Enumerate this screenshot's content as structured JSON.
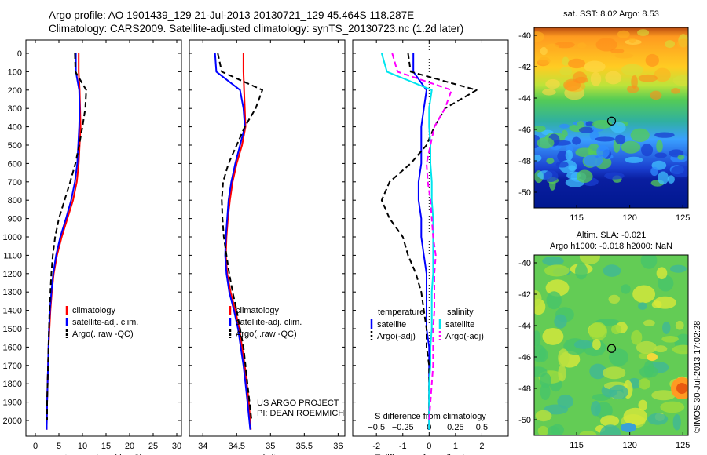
{
  "header": {
    "title_line1": "Argo profile: AO 1901439_129 21-Jul-2013 20130721_129 45.464S 118.287E",
    "title_line2": "Climatology: CARS2009. Satellite-adjusted climatology: synTS_20130723.nc (1.2d later)"
  },
  "colors": {
    "climatology": "#ff0000",
    "satellite": "#0000ff",
    "argo": "#000000",
    "satellite_salinity": "#00e5ee",
    "argo_salinity": "#ff00ff"
  },
  "chart_data": [
    {
      "name": "temperature",
      "type": "line",
      "xlabel": "temperature (deg C)",
      "xlim": [
        -2,
        31
      ],
      "ylim": [
        2080,
        0
      ],
      "xticks": [
        0,
        5,
        10,
        15,
        20,
        25,
        30
      ],
      "yticks": [
        0,
        100,
        200,
        300,
        400,
        500,
        600,
        700,
        800,
        900,
        1000,
        1100,
        1200,
        1300,
        1400,
        1500,
        1600,
        1700,
        1800,
        1900,
        2000
      ],
      "legend": [
        "climatology",
        "satellite-adj. clim.",
        "Argo(..raw -QC)"
      ],
      "series": [
        {
          "key": "climatology",
          "style": "solid",
          "x": [
            9.2,
            9.2,
            9.4,
            9.5,
            9.6,
            9.4,
            9.2,
            8.8,
            8.0,
            6.8,
            5.6,
            4.6,
            3.9,
            3.5,
            3.2,
            3.0,
            2.8,
            2.7,
            2.6,
            2.5,
            2.4
          ],
          "y": [
            0,
            100,
            200,
            300,
            400,
            500,
            600,
            700,
            800,
            900,
            1000,
            1100,
            1200,
            1300,
            1400,
            1500,
            1600,
            1700,
            1800,
            1900,
            2050
          ]
        },
        {
          "key": "satellite",
          "style": "solid",
          "x": [
            8.6,
            8.6,
            9.3,
            9.4,
            9.3,
            9.1,
            8.9,
            8.4,
            7.6,
            6.5,
            5.3,
            4.4,
            3.8,
            3.4,
            3.1,
            2.9,
            2.8,
            2.7,
            2.6,
            2.5,
            2.4
          ],
          "y": [
            0,
            100,
            200,
            300,
            400,
            500,
            600,
            700,
            800,
            900,
            1000,
            1100,
            1200,
            1300,
            1400,
            1500,
            1600,
            1700,
            1800,
            1900,
            2050
          ]
        },
        {
          "key": "argo",
          "style": "dashed",
          "x": [
            8.4,
            8.5,
            10.8,
            10.6,
            10.0,
            9.3,
            8.5,
            7.4,
            6.2,
            5.0,
            4.2,
            3.7,
            3.4,
            3.2,
            3.0,
            2.9,
            2.8,
            2.7,
            2.6,
            2.5,
            2.5
          ],
          "y": [
            0,
            100,
            200,
            300,
            400,
            500,
            600,
            700,
            800,
            900,
            1000,
            1100,
            1200,
            1300,
            1400,
            1500,
            1600,
            1700,
            1800,
            1900,
            2000
          ]
        }
      ]
    },
    {
      "name": "salinity",
      "type": "line",
      "xlabel": "salinity",
      "xlim": [
        33.8,
        36.1
      ],
      "ylim": [
        2080,
        0
      ],
      "xticks": [
        34,
        34.5,
        35,
        35.5,
        36
      ],
      "xtick_labels": [
        "34",
        "34.5",
        "35",
        "35.5",
        "36"
      ],
      "legend": [
        "climatology",
        "satellite-adj. clim.",
        "Argo(..raw -QC)"
      ],
      "credit": [
        "US ARGO PROJECT",
        "PI: DEAN ROEMMICH"
      ],
      "series": [
        {
          "key": "climatology",
          "style": "solid",
          "x": [
            34.6,
            34.6,
            34.61,
            34.62,
            34.63,
            34.58,
            34.5,
            34.44,
            34.4,
            34.37,
            34.35,
            34.34,
            34.36,
            34.41,
            34.48,
            34.54,
            34.58,
            34.62,
            34.65,
            34.68,
            34.71
          ],
          "y": [
            0,
            100,
            200,
            300,
            400,
            500,
            600,
            700,
            800,
            900,
            1000,
            1100,
            1200,
            1300,
            1400,
            1500,
            1600,
            1700,
            1800,
            1900,
            2050
          ]
        },
        {
          "key": "satellite",
          "style": "solid",
          "x": [
            34.18,
            34.2,
            34.55,
            34.6,
            34.62,
            34.55,
            34.48,
            34.42,
            34.38,
            34.36,
            34.34,
            34.33,
            34.35,
            34.39,
            34.46,
            34.52,
            34.56,
            34.6,
            34.63,
            34.66,
            34.7
          ],
          "y": [
            0,
            100,
            200,
            300,
            400,
            500,
            600,
            700,
            800,
            900,
            1000,
            1100,
            1200,
            1300,
            1400,
            1500,
            1600,
            1700,
            1800,
            1900,
            2050
          ]
        },
        {
          "key": "argo",
          "style": "dashed",
          "x": [
            34.22,
            34.28,
            34.88,
            34.78,
            34.62,
            34.5,
            34.38,
            34.3,
            34.28,
            34.29,
            34.31,
            34.35,
            34.39,
            34.44,
            34.5,
            34.55,
            34.6,
            34.63,
            34.66,
            34.69,
            34.72
          ],
          "y": [
            0,
            100,
            200,
            300,
            400,
            500,
            600,
            700,
            800,
            900,
            1000,
            1100,
            1200,
            1300,
            1400,
            1500,
            1600,
            1700,
            1800,
            1900,
            2000
          ]
        }
      ]
    },
    {
      "name": "difference",
      "type": "line",
      "xlabel": "T difference from climatology",
      "top_label": "S difference from climatology",
      "xlim": [
        -2.9,
        3.0
      ],
      "ylim": [
        2080,
        0
      ],
      "xticks": [
        -2,
        -1,
        0,
        1,
        2
      ],
      "top_xticks": [
        -0.5,
        -0.25,
        0,
        0.25,
        0.5
      ],
      "top_xtick_labels": [
        "−0.5",
        "−0.25",
        "0",
        "0.25",
        "0.5"
      ],
      "legend_titles": [
        "temperature",
        "salinity"
      ],
      "legend": [
        "satellite",
        "Argo(-adj)",
        "satellite",
        "Argo(-adj)"
      ],
      "series": [
        {
          "key": "satellite",
          "style": "solid",
          "x": [
            -0.6,
            -0.6,
            -0.1,
            -0.2,
            -0.3,
            -0.3,
            -0.3,
            -0.4,
            -0.4,
            -0.3,
            -0.3,
            -0.2,
            -0.1,
            -0.1,
            -0.1,
            -0.1,
            0,
            0,
            0,
            0,
            0
          ],
          "y": [
            0,
            100,
            200,
            300,
            400,
            500,
            600,
            700,
            800,
            900,
            1000,
            1100,
            1200,
            1300,
            1400,
            1500,
            1600,
            1700,
            1800,
            1900,
            2050
          ]
        },
        {
          "key": "argo",
          "style": "dashed",
          "x": [
            -0.8,
            -0.7,
            1.8,
            0.6,
            0.2,
            -0.1,
            -0.7,
            -1.5,
            -1.8,
            -1.5,
            -1.0,
            -0.8,
            -0.5,
            -0.3,
            -0.2,
            -0.1,
            -0.1,
            0,
            0,
            0,
            0
          ],
          "y": [
            0,
            100,
            200,
            300,
            400,
            500,
            600,
            700,
            800,
            900,
            1000,
            1100,
            1200,
            1300,
            1400,
            1500,
            1600,
            1700,
            1800,
            1900,
            2000
          ]
        },
        {
          "key": "satellite_salinity",
          "style": "solid",
          "x": [
            -1.8,
            -1.6,
            0.1,
            0,
            0,
            0.05,
            0.05,
            0.1,
            0.1,
            0.15,
            0.15,
            0.15,
            0.15,
            0.1,
            0.1,
            0.1,
            0.05,
            0.05,
            0,
            0,
            0
          ],
          "y": [
            0,
            100,
            200,
            300,
            400,
            500,
            600,
            700,
            800,
            900,
            1000,
            1100,
            1200,
            1300,
            1400,
            1500,
            1600,
            1700,
            1800,
            1900,
            2050
          ]
        },
        {
          "key": "argo_salinity",
          "style": "dashed",
          "x": [
            -1.4,
            -1.2,
            0.85,
            0.6,
            0.2,
            0.05,
            -0.1,
            -0.05,
            0.05,
            0.1,
            0.15,
            0.25,
            0.2,
            0.2,
            0.2,
            0.15,
            0.15,
            0.15,
            0.1,
            0.05,
            0
          ],
          "y": [
            0,
            100,
            200,
            300,
            400,
            500,
            600,
            700,
            800,
            900,
            1000,
            1100,
            1200,
            1300,
            1400,
            1500,
            1600,
            1700,
            1800,
            1900,
            2000
          ]
        }
      ]
    },
    {
      "name": "sst_map",
      "type": "heatmap",
      "title": "sat. SST: 8.02 Argo: 8.53",
      "xlim": [
        111,
        125.5
      ],
      "ylim": [
        -51,
        -39.5
      ],
      "xticks": [
        115,
        120,
        125
      ],
      "yticks": [
        -40,
        -42,
        -44,
        -46,
        -48,
        -50
      ],
      "marker": {
        "x": 118.287,
        "y": -45.464
      }
    },
    {
      "name": "sla_map",
      "type": "heatmap",
      "title": "Altim. SLA: -0.021",
      "subtitle": "Argo h1000: -0.018 h2000: NaN",
      "xlim": [
        111,
        125.5
      ],
      "ylim": [
        -51,
        -39.5
      ],
      "xticks": [
        115,
        120,
        125
      ],
      "yticks": [
        -40,
        -42,
        -44,
        -46,
        -48,
        -50
      ],
      "marker": {
        "x": 118.287,
        "y": -45.464
      }
    }
  ],
  "footer": {
    "stamp": "©IMOS 30-Jul-2013 17:02:28"
  }
}
